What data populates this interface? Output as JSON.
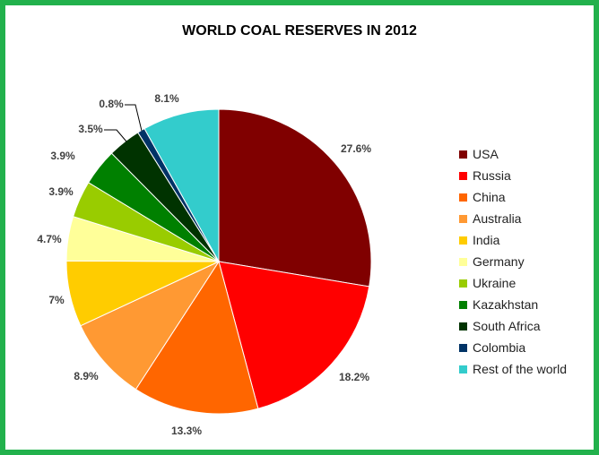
{
  "chart_data": {
    "type": "pie",
    "title": "WORLD COAL RESERVES IN 2012",
    "categories": [
      "USA",
      "Russia",
      "China",
      "Australia",
      "India",
      "Germany",
      "Ukraine",
      "Kazakhstan",
      "South Africa",
      "Colombia",
      "Rest of the world"
    ],
    "values": [
      27.6,
      18.2,
      13.3,
      8.9,
      7,
      4.7,
      3.9,
      3.9,
      3.5,
      0.8,
      8.1
    ],
    "labels": [
      "27.6%",
      "18.2%",
      "13.3%",
      "8.9%",
      "7%",
      "4.7%",
      "3.9%",
      "3.9%",
      "3.5%",
      "0.8%",
      "8.1%"
    ],
    "colors": [
      "#800000",
      "#ff0000",
      "#ff6600",
      "#ff9933",
      "#ffcc00",
      "#ffff99",
      "#99cc00",
      "#008000",
      "#003300",
      "#003366",
      "#33cccc"
    ],
    "legend_position": "right",
    "start": "12 o'clock, clockwise"
  }
}
